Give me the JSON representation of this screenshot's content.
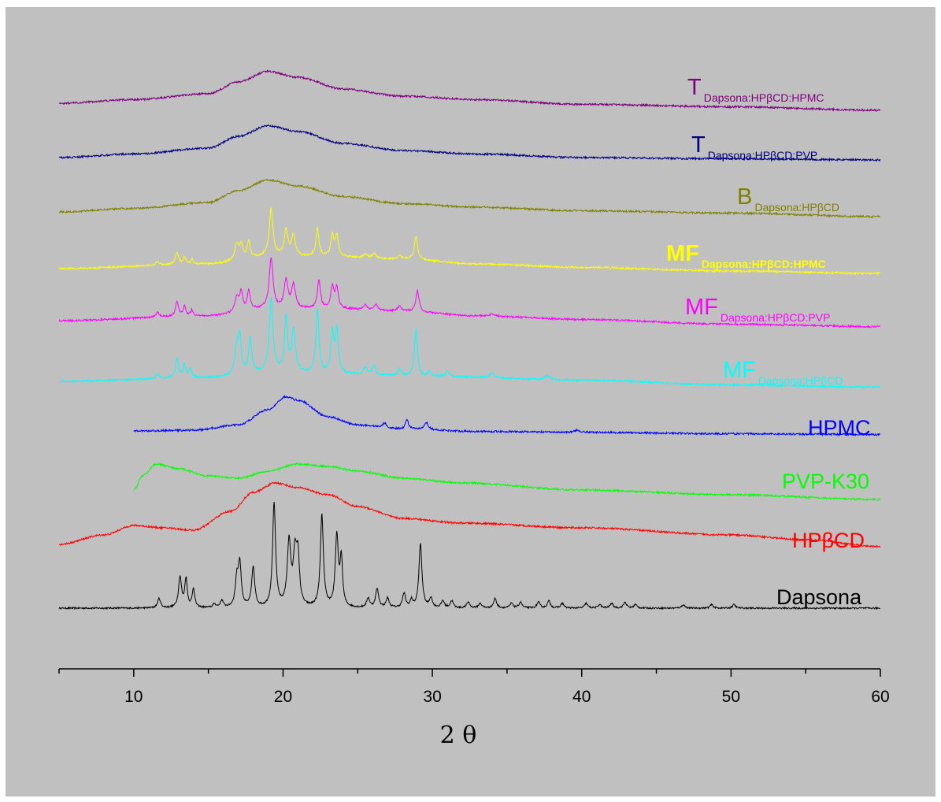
{
  "chart_data": {
    "type": "line",
    "title": "",
    "xlabel": "2 θ",
    "ylabel": "",
    "xlim": [
      5,
      60
    ],
    "x_ticks": [
      10,
      20,
      30,
      40,
      50,
      60
    ],
    "grid": false,
    "legend": "none",
    "series": [
      {
        "label_main": "Dapsona",
        "label_sub": "",
        "label_bold": false,
        "color": "#000000",
        "x_start": 5,
        "x_end": 60,
        "noise": 0.35,
        "baseline": [
          [
            5,
            0.0
          ],
          [
            60,
            0.0
          ]
        ],
        "peaks": [
          [
            11.7,
            4,
            0.12
          ],
          [
            13.1,
            13,
            0.12
          ],
          [
            13.5,
            12,
            0.1
          ],
          [
            14.0,
            8,
            0.1
          ],
          [
            15.4,
            1.5,
            0.12
          ],
          [
            15.9,
            3,
            0.12
          ],
          [
            16.9,
            11,
            0.12
          ],
          [
            17.1,
            18,
            0.12
          ],
          [
            18.0,
            17,
            0.12
          ],
          [
            19.4,
            44,
            0.12
          ],
          [
            20.4,
            27,
            0.14
          ],
          [
            20.8,
            21,
            0.14
          ],
          [
            21.0,
            19,
            0.12
          ],
          [
            22.6,
            39,
            0.12
          ],
          [
            23.6,
            30,
            0.12
          ],
          [
            23.9,
            20,
            0.1
          ],
          [
            25.7,
            4,
            0.12
          ],
          [
            26.3,
            8,
            0.12
          ],
          [
            27.0,
            4,
            0.12
          ],
          [
            28.1,
            6,
            0.12
          ],
          [
            28.6,
            3,
            0.1
          ],
          [
            29.2,
            27,
            0.12
          ],
          [
            29.9,
            4,
            0.12
          ],
          [
            30.7,
            3,
            0.12
          ],
          [
            31.3,
            3,
            0.12
          ],
          [
            32.4,
            2.5,
            0.12
          ],
          [
            33.2,
            2,
            0.12
          ],
          [
            34.2,
            4,
            0.12
          ],
          [
            35.3,
            2,
            0.12
          ],
          [
            35.9,
            2.5,
            0.12
          ],
          [
            37.1,
            2.5,
            0.12
          ],
          [
            37.8,
            3,
            0.12
          ],
          [
            38.7,
            2,
            0.12
          ],
          [
            40.3,
            2,
            0.12
          ],
          [
            41.2,
            1.5,
            0.12
          ],
          [
            42.0,
            2,
            0.12
          ],
          [
            42.9,
            2.5,
            0.12
          ],
          [
            43.6,
            1.5,
            0.12
          ],
          [
            46.8,
            1.5,
            0.12
          ],
          [
            48.7,
            1.5,
            0.12
          ],
          [
            50.2,
            1.5,
            0.12
          ]
        ]
      },
      {
        "label_main": "HPβCD",
        "label_sub": "",
        "label_bold": false,
        "color": "#ff0000",
        "x_start": 5,
        "x_end": 60,
        "noise": 0.4,
        "baseline": [
          [
            5,
            0.0
          ],
          [
            8,
            4
          ],
          [
            10,
            8
          ],
          [
            12,
            7
          ],
          [
            14,
            6
          ],
          [
            16.5,
            14
          ],
          [
            18,
            22
          ],
          [
            19.5,
            26
          ],
          [
            21,
            24
          ],
          [
            23,
            21
          ],
          [
            25,
            16
          ],
          [
            28,
            11
          ],
          [
            32,
            9
          ],
          [
            40,
            7
          ],
          [
            50,
            4
          ],
          [
            55,
            2
          ],
          [
            60,
            -1
          ]
        ],
        "peaks": []
      },
      {
        "label_main": "PVP-K30",
        "label_sub": "",
        "label_bold": false,
        "color": "#00ff00",
        "x_start": 10,
        "x_end": 60,
        "noise": 0.4,
        "baseline": [
          [
            10,
            0.0
          ],
          [
            10.6,
            6
          ],
          [
            11.5,
            11
          ],
          [
            13,
            9
          ],
          [
            15,
            6
          ],
          [
            17,
            5
          ],
          [
            19,
            8
          ],
          [
            21,
            11
          ],
          [
            23,
            10
          ],
          [
            25,
            8
          ],
          [
            28,
            5
          ],
          [
            32,
            3
          ],
          [
            40,
            0
          ],
          [
            50,
            -2
          ],
          [
            60,
            -4
          ]
        ],
        "peaks": []
      },
      {
        "label_main": "HPMC",
        "label_sub": "",
        "label_bold": false,
        "color": "#0000ff",
        "x_start": 10,
        "x_end": 60,
        "noise": 0.4,
        "baseline": [
          [
            10,
            0.0
          ],
          [
            14,
            0.3
          ],
          [
            17,
            2.5
          ],
          [
            19,
            9
          ],
          [
            20.2,
            14.5
          ],
          [
            21,
            13
          ],
          [
            23,
            6
          ],
          [
            25,
            2.5
          ],
          [
            28,
            0.8
          ],
          [
            33,
            -0.2
          ],
          [
            40,
            -0.6
          ],
          [
            50,
            -1.2
          ],
          [
            60,
            -1.5
          ]
        ],
        "peaks": [
          [
            26.8,
            2,
            0.15
          ],
          [
            28.3,
            4,
            0.12
          ],
          [
            29.6,
            3,
            0.15
          ],
          [
            39.7,
            1,
            0.2
          ]
        ]
      },
      {
        "label_main": "MF",
        "label_sub": "Dapsona:HPβCD",
        "label_bold": false,
        "color": "#00ffff",
        "x_start": 5,
        "x_end": 60,
        "noise": 0.4,
        "baseline": [
          [
            5,
            0.0
          ],
          [
            15,
            1.5
          ],
          [
            19,
            3.5
          ],
          [
            23,
            3
          ],
          [
            30,
            2
          ],
          [
            40,
            0.5
          ],
          [
            50,
            -1.5
          ],
          [
            60,
            -2.5
          ]
        ],
        "peaks": [
          [
            11.6,
            2,
            0.12
          ],
          [
            12.9,
            8,
            0.12
          ],
          [
            13.4,
            6,
            0.1
          ],
          [
            13.8,
            4,
            0.1
          ],
          [
            16.9,
            11,
            0.15
          ],
          [
            17.1,
            14,
            0.12
          ],
          [
            17.8,
            15,
            0.12
          ],
          [
            19.2,
            31,
            0.15
          ],
          [
            20.2,
            23,
            0.12
          ],
          [
            20.7,
            18,
            0.15
          ],
          [
            22.3,
            27,
            0.12
          ],
          [
            23.3,
            17,
            0.12
          ],
          [
            23.6,
            18,
            0.12
          ],
          [
            25.5,
            3,
            0.15
          ],
          [
            26.1,
            4,
            0.12
          ],
          [
            27.8,
            3,
            0.12
          ],
          [
            28.9,
            20,
            0.12
          ],
          [
            29.8,
            2,
            0.12
          ],
          [
            31.0,
            2,
            0.15
          ],
          [
            34.0,
            2,
            0.2
          ],
          [
            37.7,
            1.5,
            0.2
          ]
        ]
      },
      {
        "label_main": "MF",
        "label_sub": "Dapsona:HPβCD:PVP",
        "label_bold": false,
        "color": "#ff00ff",
        "x_start": 5,
        "x_end": 60,
        "noise": 0.4,
        "baseline": [
          [
            5,
            0.0
          ],
          [
            15,
            2
          ],
          [
            19,
            5
          ],
          [
            23,
            5
          ],
          [
            28,
            4
          ],
          [
            33,
            2
          ],
          [
            40,
            0.5
          ],
          [
            50,
            -1.5
          ],
          [
            60,
            -2.5
          ]
        ],
        "peaks": [
          [
            11.6,
            2,
            0.12
          ],
          [
            12.9,
            6,
            0.12
          ],
          [
            13.4,
            4,
            0.1
          ],
          [
            13.9,
            2.5,
            0.1
          ],
          [
            16.9,
            6,
            0.15
          ],
          [
            17.2,
            8,
            0.12
          ],
          [
            17.7,
            8,
            0.12
          ],
          [
            19.2,
            21,
            0.15
          ],
          [
            20.2,
            12,
            0.15
          ],
          [
            20.7,
            10,
            0.15
          ],
          [
            22.4,
            12,
            0.12
          ],
          [
            23.3,
            9,
            0.12
          ],
          [
            23.6,
            9,
            0.12
          ],
          [
            25.5,
            2,
            0.15
          ],
          [
            26.2,
            2.5,
            0.15
          ],
          [
            27.8,
            2,
            0.15
          ],
          [
            29.0,
            9,
            0.12
          ],
          [
            34.0,
            1,
            0.2
          ]
        ]
      },
      {
        "label_main": "MF",
        "label_sub": "Dapsona:HPβCD:HPMC",
        "label_bold": true,
        "color": "#ffff00",
        "x_start": 5,
        "x_end": 60,
        "noise": 0.4,
        "baseline": [
          [
            5,
            0.0
          ],
          [
            15,
            2
          ],
          [
            19,
            5
          ],
          [
            23,
            5
          ],
          [
            28,
            4
          ],
          [
            33,
            2
          ],
          [
            40,
            0.5
          ],
          [
            50,
            -1
          ],
          [
            60,
            -2
          ]
        ],
        "peaks": [
          [
            11.6,
            1.5,
            0.12
          ],
          [
            12.9,
            5,
            0.12
          ],
          [
            13.4,
            3,
            0.1
          ],
          [
            13.9,
            2,
            0.1
          ],
          [
            16.9,
            7,
            0.15
          ],
          [
            17.2,
            6,
            0.12
          ],
          [
            17.7,
            7,
            0.12
          ],
          [
            19.2,
            20,
            0.15
          ],
          [
            20.2,
            11,
            0.15
          ],
          [
            20.7,
            9,
            0.15
          ],
          [
            22.3,
            12,
            0.12
          ],
          [
            23.3,
            9,
            0.12
          ],
          [
            23.6,
            9,
            0.12
          ],
          [
            25.5,
            1.5,
            0.15
          ],
          [
            26.1,
            2,
            0.15
          ],
          [
            27.8,
            1.5,
            0.15
          ],
          [
            28.9,
            10,
            0.12
          ]
        ]
      },
      {
        "label_main": "B",
        "label_sub": "Dapsona:HPβCD",
        "label_bold": false,
        "color": "#808000",
        "x_start": 5,
        "x_end": 60,
        "noise": 0.4,
        "baseline": [
          [
            5,
            0.0
          ],
          [
            10,
            1.5
          ],
          [
            15,
            4
          ],
          [
            17,
            9
          ],
          [
            19,
            13.5
          ],
          [
            21,
            11
          ],
          [
            24,
            6.5
          ],
          [
            28,
            3.5
          ],
          [
            33,
            2
          ],
          [
            40,
            0.5
          ],
          [
            50,
            -0.5
          ],
          [
            60,
            -2
          ]
        ],
        "peaks": []
      },
      {
        "label_main": "T",
        "label_sub": "Dapsona:HPβCD:PVP",
        "label_bold": false,
        "color": "#000080",
        "x_start": 5,
        "x_end": 60,
        "noise": 0.4,
        "baseline": [
          [
            5,
            0.0
          ],
          [
            10,
            1.5
          ],
          [
            15,
            4
          ],
          [
            17,
            9
          ],
          [
            19,
            13.5
          ],
          [
            21,
            11
          ],
          [
            24,
            6
          ],
          [
            28,
            3
          ],
          [
            33,
            1.5
          ],
          [
            40,
            0
          ],
          [
            50,
            -0.5
          ],
          [
            60,
            -1
          ]
        ],
        "peaks": []
      },
      {
        "label_main": "T",
        "label_sub": "Dapsona:HPβCD:HPMC",
        "label_bold": false,
        "color": "#800080",
        "x_start": 5,
        "x_end": 60,
        "noise": 0.4,
        "baseline": [
          [
            5,
            0.0
          ],
          [
            10,
            1.5
          ],
          [
            15,
            4
          ],
          [
            17,
            9
          ],
          [
            19,
            13.5
          ],
          [
            21,
            11
          ],
          [
            24,
            6
          ],
          [
            28,
            3
          ],
          [
            33,
            1.5
          ],
          [
            40,
            -0.5
          ],
          [
            50,
            -1.5
          ],
          [
            60,
            -3
          ]
        ],
        "peaks": []
      }
    ]
  }
}
